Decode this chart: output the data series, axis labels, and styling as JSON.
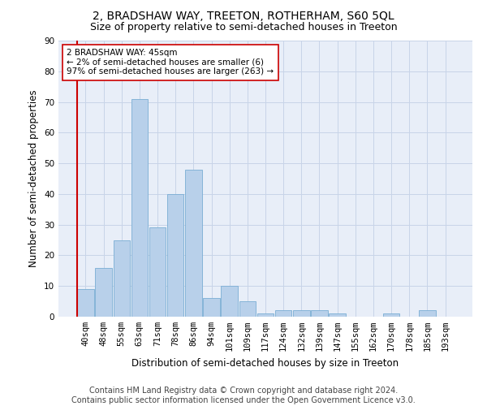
{
  "title1": "2, BRADSHAW WAY, TREETON, ROTHERHAM, S60 5QL",
  "title2": "Size of property relative to semi-detached houses in Treeton",
  "xlabel": "Distribution of semi-detached houses by size in Treeton",
  "ylabel": "Number of semi-detached properties",
  "footer1": "Contains HM Land Registry data © Crown copyright and database right 2024.",
  "footer2": "Contains public sector information licensed under the Open Government Licence v3.0.",
  "bar_labels": [
    "40sqm",
    "48sqm",
    "55sqm",
    "63sqm",
    "71sqm",
    "78sqm",
    "86sqm",
    "94sqm",
    "101sqm",
    "109sqm",
    "117sqm",
    "124sqm",
    "132sqm",
    "139sqm",
    "147sqm",
    "155sqm",
    "162sqm",
    "170sqm",
    "178sqm",
    "185sqm",
    "193sqm"
  ],
  "bar_values": [
    9,
    16,
    25,
    71,
    29,
    40,
    48,
    6,
    10,
    5,
    1,
    2,
    2,
    2,
    1,
    0,
    0,
    1,
    0,
    2,
    0
  ],
  "bar_color": "#b8d0ea",
  "bar_edge_color": "#7aaed4",
  "highlight_line_color": "#cc0000",
  "annotation_text": "2 BRADSHAW WAY: 45sqm\n← 2% of semi-detached houses are smaller (6)\n97% of semi-detached houses are larger (263) →",
  "annotation_box_color": "#ffffff",
  "annotation_box_edge": "#cc0000",
  "ylim": [
    0,
    90
  ],
  "yticks": [
    0,
    10,
    20,
    30,
    40,
    50,
    60,
    70,
    80,
    90
  ],
  "grid_color": "#c8d4e8",
  "bg_color": "#e8eef8",
  "title1_fontsize": 10,
  "title2_fontsize": 9,
  "xlabel_fontsize": 8.5,
  "ylabel_fontsize": 8.5,
  "footer_fontsize": 7,
  "tick_fontsize": 7.5,
  "annot_fontsize": 7.5
}
